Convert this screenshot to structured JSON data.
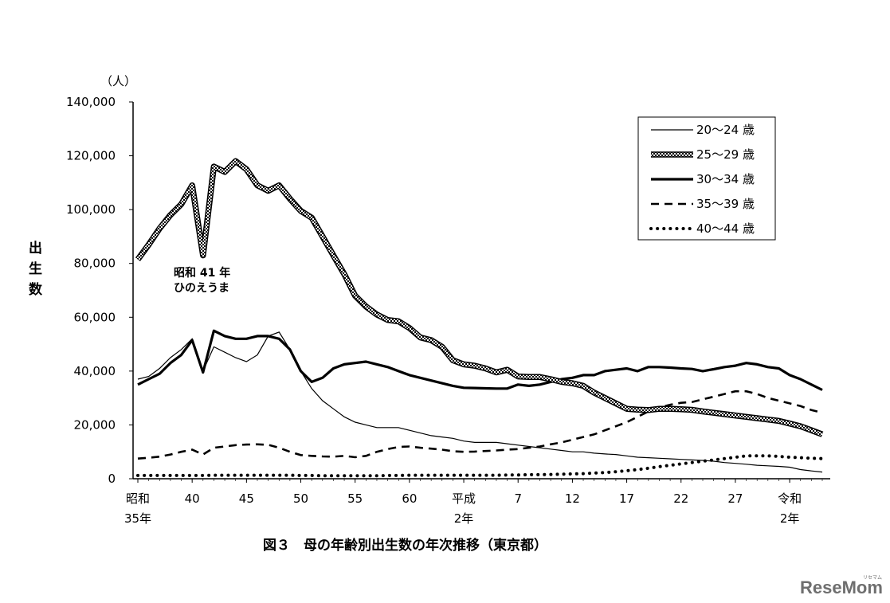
{
  "chart_data": {
    "type": "line",
    "title": "",
    "caption": "図３　母の年齢別出生数の年次推移（東京都）",
    "ylabel_chars": [
      "出",
      "生",
      "数"
    ],
    "yunit": "（人）",
    "ylim": [
      0,
      140000
    ],
    "yticks": [
      0,
      20000,
      40000,
      60000,
      80000,
      100000,
      120000,
      140000
    ],
    "ytick_labels": [
      "0",
      "20,000",
      "40,000",
      "60,000",
      "80,000",
      "100,000",
      "120,000",
      "140,000"
    ],
    "xticks": [
      {
        "x": 1960,
        "line1": "昭和",
        "line2": "35年"
      },
      {
        "x": 1965,
        "line1": "40",
        "line2": ""
      },
      {
        "x": 1970,
        "line1": "45",
        "line2": ""
      },
      {
        "x": 1975,
        "line1": "50",
        "line2": ""
      },
      {
        "x": 1980,
        "line1": "55",
        "line2": ""
      },
      {
        "x": 1985,
        "line1": "60",
        "line2": ""
      },
      {
        "x": 1990,
        "line1": "平成",
        "line2": "2年"
      },
      {
        "x": 1995,
        "line1": "7",
        "line2": ""
      },
      {
        "x": 2000,
        "line1": "12",
        "line2": ""
      },
      {
        "x": 2005,
        "line1": "17",
        "line2": ""
      },
      {
        "x": 2010,
        "line1": "22",
        "line2": ""
      },
      {
        "x": 2015,
        "line1": "27",
        "line2": ""
      },
      {
        "x": 2020,
        "line1": "令和",
        "line2": "2年"
      }
    ],
    "xlim": [
      1959.5,
      2023.5
    ],
    "grid": false,
    "legend_position": "top-right",
    "annotation": {
      "lines": [
        "昭和 41 年",
        "ひのえうま"
      ],
      "x": 1966
    },
    "x": [
      1960,
      1961,
      1962,
      1963,
      1964,
      1965,
      1966,
      1967,
      1968,
      1969,
      1970,
      1971,
      1972,
      1973,
      1974,
      1975,
      1976,
      1977,
      1978,
      1979,
      1980,
      1981,
      1982,
      1983,
      1984,
      1985,
      1986,
      1987,
      1988,
      1989,
      1990,
      1991,
      1992,
      1993,
      1994,
      1995,
      1996,
      1997,
      1998,
      1999,
      2000,
      2001,
      2002,
      2003,
      2004,
      2005,
      2006,
      2007,
      2008,
      2009,
      2010,
      2011,
      2012,
      2013,
      2014,
      2015,
      2016,
      2017,
      2018,
      2019,
      2020,
      2021,
      2022,
      2023
    ],
    "series": [
      {
        "name": "20～24 歳",
        "style": "thin",
        "values": [
          37000,
          38000,
          41000,
          45000,
          48000,
          52000,
          40000,
          49000,
          47000,
          45000,
          43500,
          46000,
          53000,
          54500,
          48000,
          40000,
          33500,
          29000,
          26000,
          23000,
          21000,
          20000,
          19000,
          19000,
          19000,
          18000,
          17000,
          16000,
          15500,
          15000,
          14000,
          13500,
          13500,
          13500,
          13000,
          12500,
          12000,
          11500,
          11000,
          10500,
          10000,
          10000,
          9500,
          9200,
          9000,
          8500,
          8000,
          7800,
          7600,
          7400,
          7200,
          7000,
          6800,
          6500,
          6000,
          5700,
          5400,
          5000,
          4800,
          4600,
          4300,
          3400,
          2900,
          2500
        ]
      },
      {
        "name": "25～29 歳",
        "style": "pattern",
        "values": [
          81500,
          87000,
          93000,
          98000,
          102000,
          109000,
          83000,
          116000,
          114000,
          118000,
          115000,
          109000,
          107000,
          109000,
          104000,
          99500,
          97000,
          90000,
          83000,
          76000,
          68000,
          64000,
          61000,
          59000,
          58500,
          56000,
          52500,
          51500,
          49000,
          44000,
          42500,
          42000,
          41000,
          39500,
          40500,
          38000,
          37800,
          37800,
          37000,
          36000,
          35500,
          34500,
          32000,
          30000,
          28000,
          26000,
          25700,
          25500,
          26000,
          26000,
          25800,
          25600,
          25000,
          24500,
          24000,
          23500,
          23000,
          22500,
          22000,
          21500,
          20500,
          19500,
          18000,
          16500
        ]
      },
      {
        "name": "30～34 歳",
        "style": "thick",
        "values": [
          35000,
          37000,
          39000,
          43000,
          46000,
          51500,
          39500,
          55000,
          53000,
          52000,
          52000,
          53000,
          53000,
          52000,
          48000,
          40000,
          36000,
          37500,
          41000,
          42500,
          43000,
          43500,
          42500,
          41500,
          40000,
          38500,
          37500,
          36500,
          35500,
          34500,
          33800,
          33700,
          33600,
          33500,
          33500,
          35000,
          34500,
          35000,
          36000,
          37000,
          37500,
          38500,
          38500,
          40000,
          40500,
          41000,
          40000,
          41500,
          41500,
          41300,
          41000,
          40800,
          40000,
          40700,
          41500,
          42000,
          43000,
          42500,
          41500,
          41000,
          38500,
          37000,
          35000,
          33000
        ]
      },
      {
        "name": "35～39 歳",
        "style": "dashed",
        "values": [
          7500,
          7800,
          8200,
          9000,
          10000,
          10800,
          9000,
          11500,
          12000,
          12500,
          12700,
          12800,
          12600,
          11500,
          10000,
          8800,
          8500,
          8300,
          8200,
          8500,
          8000,
          8500,
          10000,
          11000,
          11800,
          12000,
          11500,
          11200,
          10800,
          10200,
          10000,
          10100,
          10300,
          10500,
          10800,
          11000,
          11500,
          12000,
          12800,
          13500,
          14500,
          15500,
          16500,
          18000,
          19500,
          21000,
          23000,
          25000,
          26500,
          27500,
          28200,
          28500,
          29500,
          30500,
          31500,
          32500,
          32500,
          31500,
          30000,
          29000,
          28000,
          27000,
          25500,
          24500
        ]
      },
      {
        "name": "40～44 歳",
        "style": "dotted",
        "values": [
          1200,
          1200,
          1200,
          1200,
          1200,
          1200,
          1200,
          1300,
          1300,
          1300,
          1300,
          1300,
          1300,
          1300,
          1300,
          1200,
          1200,
          1100,
          1100,
          1100,
          1100,
          1100,
          1100,
          1200,
          1200,
          1300,
          1300,
          1300,
          1300,
          1300,
          1300,
          1300,
          1300,
          1300,
          1400,
          1400,
          1500,
          1500,
          1600,
          1700,
          1800,
          1900,
          2100,
          2300,
          2600,
          3000,
          3400,
          3900,
          4500,
          5000,
          5500,
          6000,
          6500,
          7000,
          7500,
          8000,
          8500,
          8500,
          8500,
          8300,
          8000,
          7800,
          7600,
          7500
        ]
      }
    ]
  },
  "watermark": "ReseMom",
  "watermark_small": "リセマム"
}
